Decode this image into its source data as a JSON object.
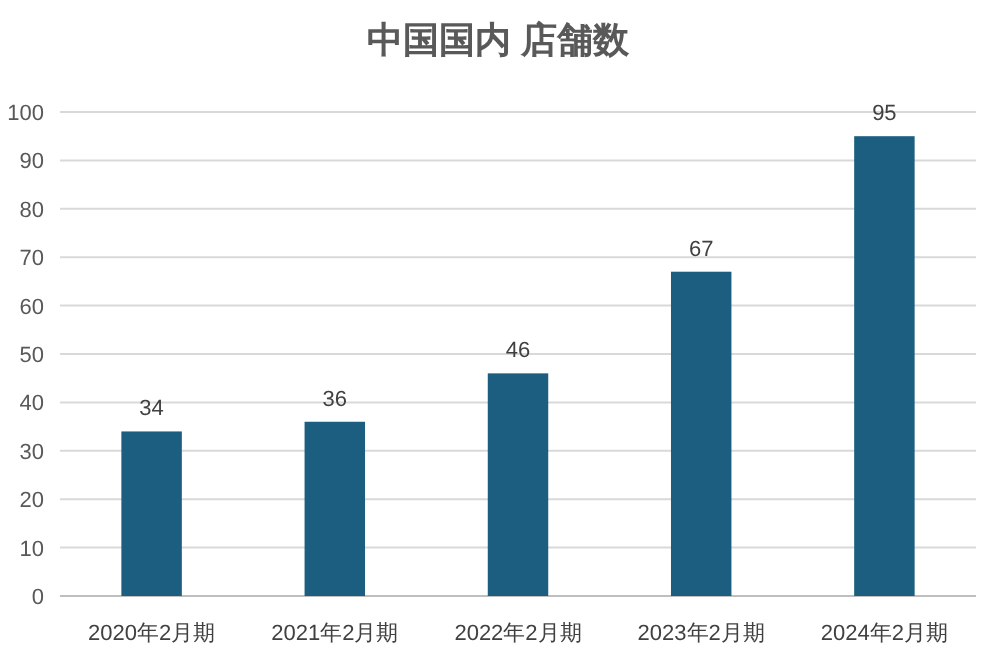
{
  "chart_data": {
    "type": "bar",
    "title": "中国国内 店舗数",
    "categories": [
      "2020年2月期",
      "2021年2月期",
      "2022年2月期",
      "2023年2月期",
      "2024年2月期"
    ],
    "values": [
      34,
      36,
      46,
      67,
      95
    ],
    "color": "#1b5e80",
    "ylim": [
      0,
      100
    ],
    "yticks": [
      0,
      10,
      20,
      30,
      40,
      50,
      60,
      70,
      80,
      90,
      100
    ],
    "grid": "y",
    "data_labels": true
  }
}
